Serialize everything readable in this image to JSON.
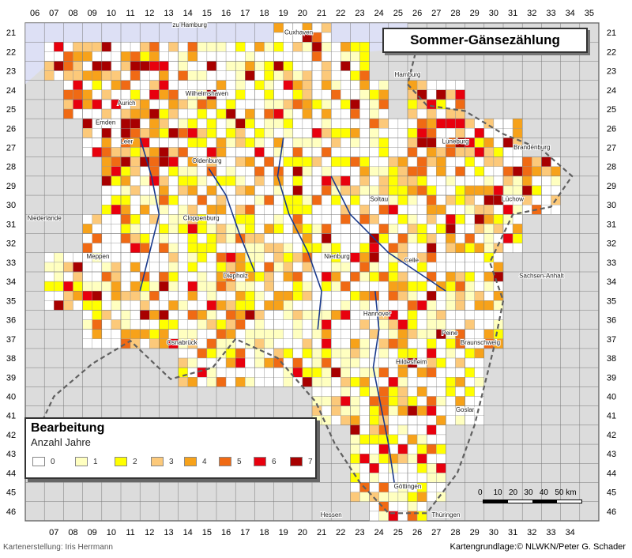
{
  "title": "Sommer-Gänsezählung",
  "grid": {
    "columns_top": [
      "06",
      "07",
      "08",
      "09",
      "10",
      "11",
      "12",
      "13",
      "14",
      "15",
      "16",
      "17",
      "18",
      "19",
      "20",
      "21",
      "22",
      "23",
      "24",
      "25",
      "26",
      "27",
      "28",
      "29",
      "30",
      "31",
      "32",
      "33",
      "34",
      "35"
    ],
    "columns_bottom": [
      "07",
      "08",
      "09",
      "10",
      "11",
      "12",
      "13",
      "14",
      "15",
      "16",
      "17",
      "18",
      "19",
      "20",
      "21",
      "22",
      "23",
      "24",
      "25",
      "26",
      "27",
      "28",
      "29",
      "30",
      "31",
      "32",
      "33",
      "34"
    ],
    "rows": [
      "21",
      "22",
      "23",
      "24",
      "25",
      "26",
      "27",
      "28",
      "29",
      "30",
      "31",
      "32",
      "33",
      "34",
      "35",
      "36",
      "37",
      "38",
      "39",
      "40",
      "41",
      "42",
      "43",
      "44",
      "45",
      "46"
    ]
  },
  "places": [
    {
      "name": "Cuxhaven",
      "cx": 20.3,
      "ry": 21.6
    },
    {
      "name": "Hamburg",
      "cx": 26.0,
      "ry": 23.8
    },
    {
      "name": "Aurich",
      "cx": 11.3,
      "ry": 25.3
    },
    {
      "name": "Wilhelmshaven",
      "cx": 15.5,
      "ry": 24.8
    },
    {
      "name": "Emden",
      "cx": 10.2,
      "ry": 26.3
    },
    {
      "name": "Leer",
      "cx": 11.3,
      "ry": 27.3
    },
    {
      "name": "Oldenburg",
      "cx": 15.5,
      "ry": 28.3
    },
    {
      "name": "Lüneburg",
      "cx": 28.5,
      "ry": 27.3
    },
    {
      "name": "Brandenburg",
      "cx": 32.5,
      "ry": 27.6
    },
    {
      "name": "Lüchow",
      "cx": 31.5,
      "ry": 30.3
    },
    {
      "name": "Soltau",
      "cx": 24.5,
      "ry": 30.3
    },
    {
      "name": "Niederlande",
      "cx": 7.0,
      "ry": 31.3
    },
    {
      "name": "Cloppenburg",
      "cx": 15.2,
      "ry": 31.3
    },
    {
      "name": "Meppen",
      "cx": 9.8,
      "ry": 33.3
    },
    {
      "name": "Diepholz",
      "cx": 17.0,
      "ry": 34.3
    },
    {
      "name": "Nienburg",
      "cx": 22.3,
      "ry": 33.3
    },
    {
      "name": "Celle",
      "cx": 26.2,
      "ry": 33.5
    },
    {
      "name": "Sachsen-Anhalt",
      "cx": 33.0,
      "ry": 34.3
    },
    {
      "name": "Hannover",
      "cx": 24.4,
      "ry": 36.3
    },
    {
      "name": "Peine",
      "cx": 28.2,
      "ry": 37.3
    },
    {
      "name": "Braunschweig",
      "cx": 29.8,
      "ry": 37.8
    },
    {
      "name": "Osnabrück",
      "cx": 14.2,
      "ry": 37.8
    },
    {
      "name": "Hildesheim",
      "cx": 26.2,
      "ry": 38.8
    },
    {
      "name": "Goslar",
      "cx": 29.0,
      "ry": 41.3
    },
    {
      "name": "Göttingen",
      "cx": 26.0,
      "ry": 45.3
    },
    {
      "name": "Hessen",
      "cx": 22.0,
      "ry": 46.8
    },
    {
      "name": "Thüringen",
      "cx": 28.0,
      "ry": 46.8
    },
    {
      "name": "zu Hamburg",
      "cx": 14.6,
      "ry": 21.2
    }
  ],
  "legend": {
    "title": "Bearbeitung",
    "subtitle": "Anzahl Jahre",
    "items": [
      {
        "label": "0",
        "color": "#ffffff"
      },
      {
        "label": "1",
        "color": "#ffffc0"
      },
      {
        "label": "2",
        "color": "#ffff00"
      },
      {
        "label": "3",
        "color": "#fcc97a"
      },
      {
        "label": "4",
        "color": "#f7a21a"
      },
      {
        "label": "5",
        "color": "#f06a14"
      },
      {
        "label": "6",
        "color": "#e8000e"
      },
      {
        "label": "7",
        "color": "#a80000"
      }
    ]
  },
  "scale": {
    "labels": [
      "0",
      "10",
      "20",
      "30",
      "40",
      "50"
    ],
    "unit": "km"
  },
  "footer": {
    "left": "Kartenerstellung: Iris Herrmann",
    "right": "Kartengrundlage:© NLWKN/Peter G. Schader"
  },
  "colors": {
    "sea": "#dde0f5",
    "land_out": "#dcdcdc",
    "river": "#1a3a8c",
    "border": "#7a7a7a"
  }
}
